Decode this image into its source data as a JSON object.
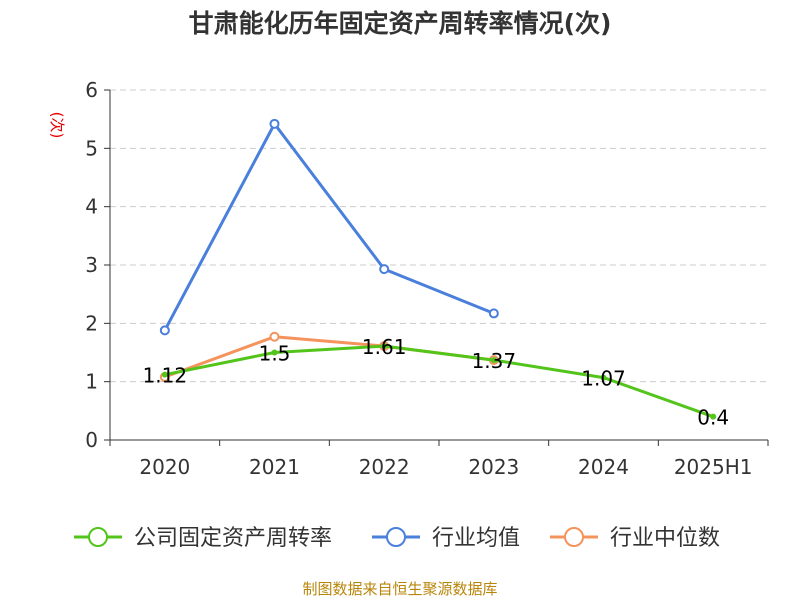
{
  "title": "甘肃能化历年固定资产周转率情况(次)",
  "source": "制图数据来自恒生聚源数据库",
  "colors": {
    "company": "#52c41a",
    "industry_avg": "#4a7fdc",
    "industry_median": "#f4935c",
    "axis": "#333333",
    "grid": "#cccccc",
    "ylabel": "#e60000"
  },
  "chart_data": {
    "type": "line",
    "title": "甘肃能化历年固定资产周转率情况(次)",
    "ylabel": "(次)",
    "xlabel": "",
    "categories": [
      "2020",
      "2021",
      "2022",
      "2023",
      "2024",
      "2025H1"
    ],
    "ylim": [
      0,
      6
    ],
    "yticks": [
      0,
      1,
      2,
      3,
      4,
      5,
      6
    ],
    "grid": true,
    "legend_position": "bottom",
    "series": [
      {
        "name": "公司固定资产周转率",
        "values": [
          1.12,
          1.5,
          1.61,
          1.37,
          1.07,
          0.4
        ],
        "data_labels": [
          "1.12",
          "1.5",
          "1.61",
          "1.37",
          "1.07",
          "0.4"
        ],
        "color_key": "company"
      },
      {
        "name": "行业均值",
        "values": [
          1.88,
          5.42,
          2.93,
          2.17,
          null,
          null
        ],
        "color_key": "industry_avg"
      },
      {
        "name": "行业中位数",
        "values": [
          1.08,
          1.77,
          1.61,
          1.37,
          null,
          null
        ],
        "color_key": "industry_median"
      }
    ]
  }
}
